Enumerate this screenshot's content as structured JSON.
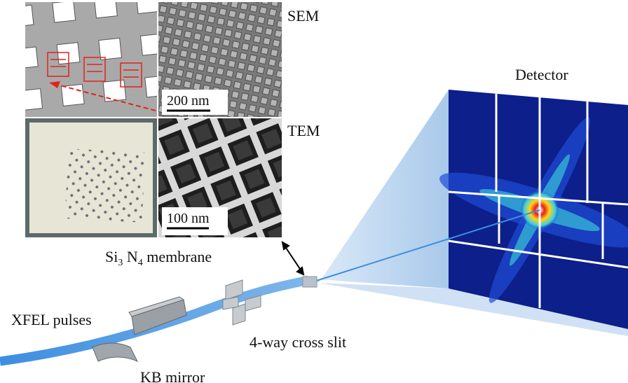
{
  "panels": {
    "sem_label": "SEM",
    "tem_label": "TEM",
    "sem_scale": "200 nm",
    "tem_scale": "100 nm",
    "membrane_label": {
      "parts": [
        "Si",
        "3",
        " N",
        "4",
        " membrane"
      ]
    }
  },
  "labels": {
    "detector": "Detector",
    "xfel": "XFEL pulses",
    "slit": "4-way cross slit",
    "mirror": "KB mirror"
  }
}
